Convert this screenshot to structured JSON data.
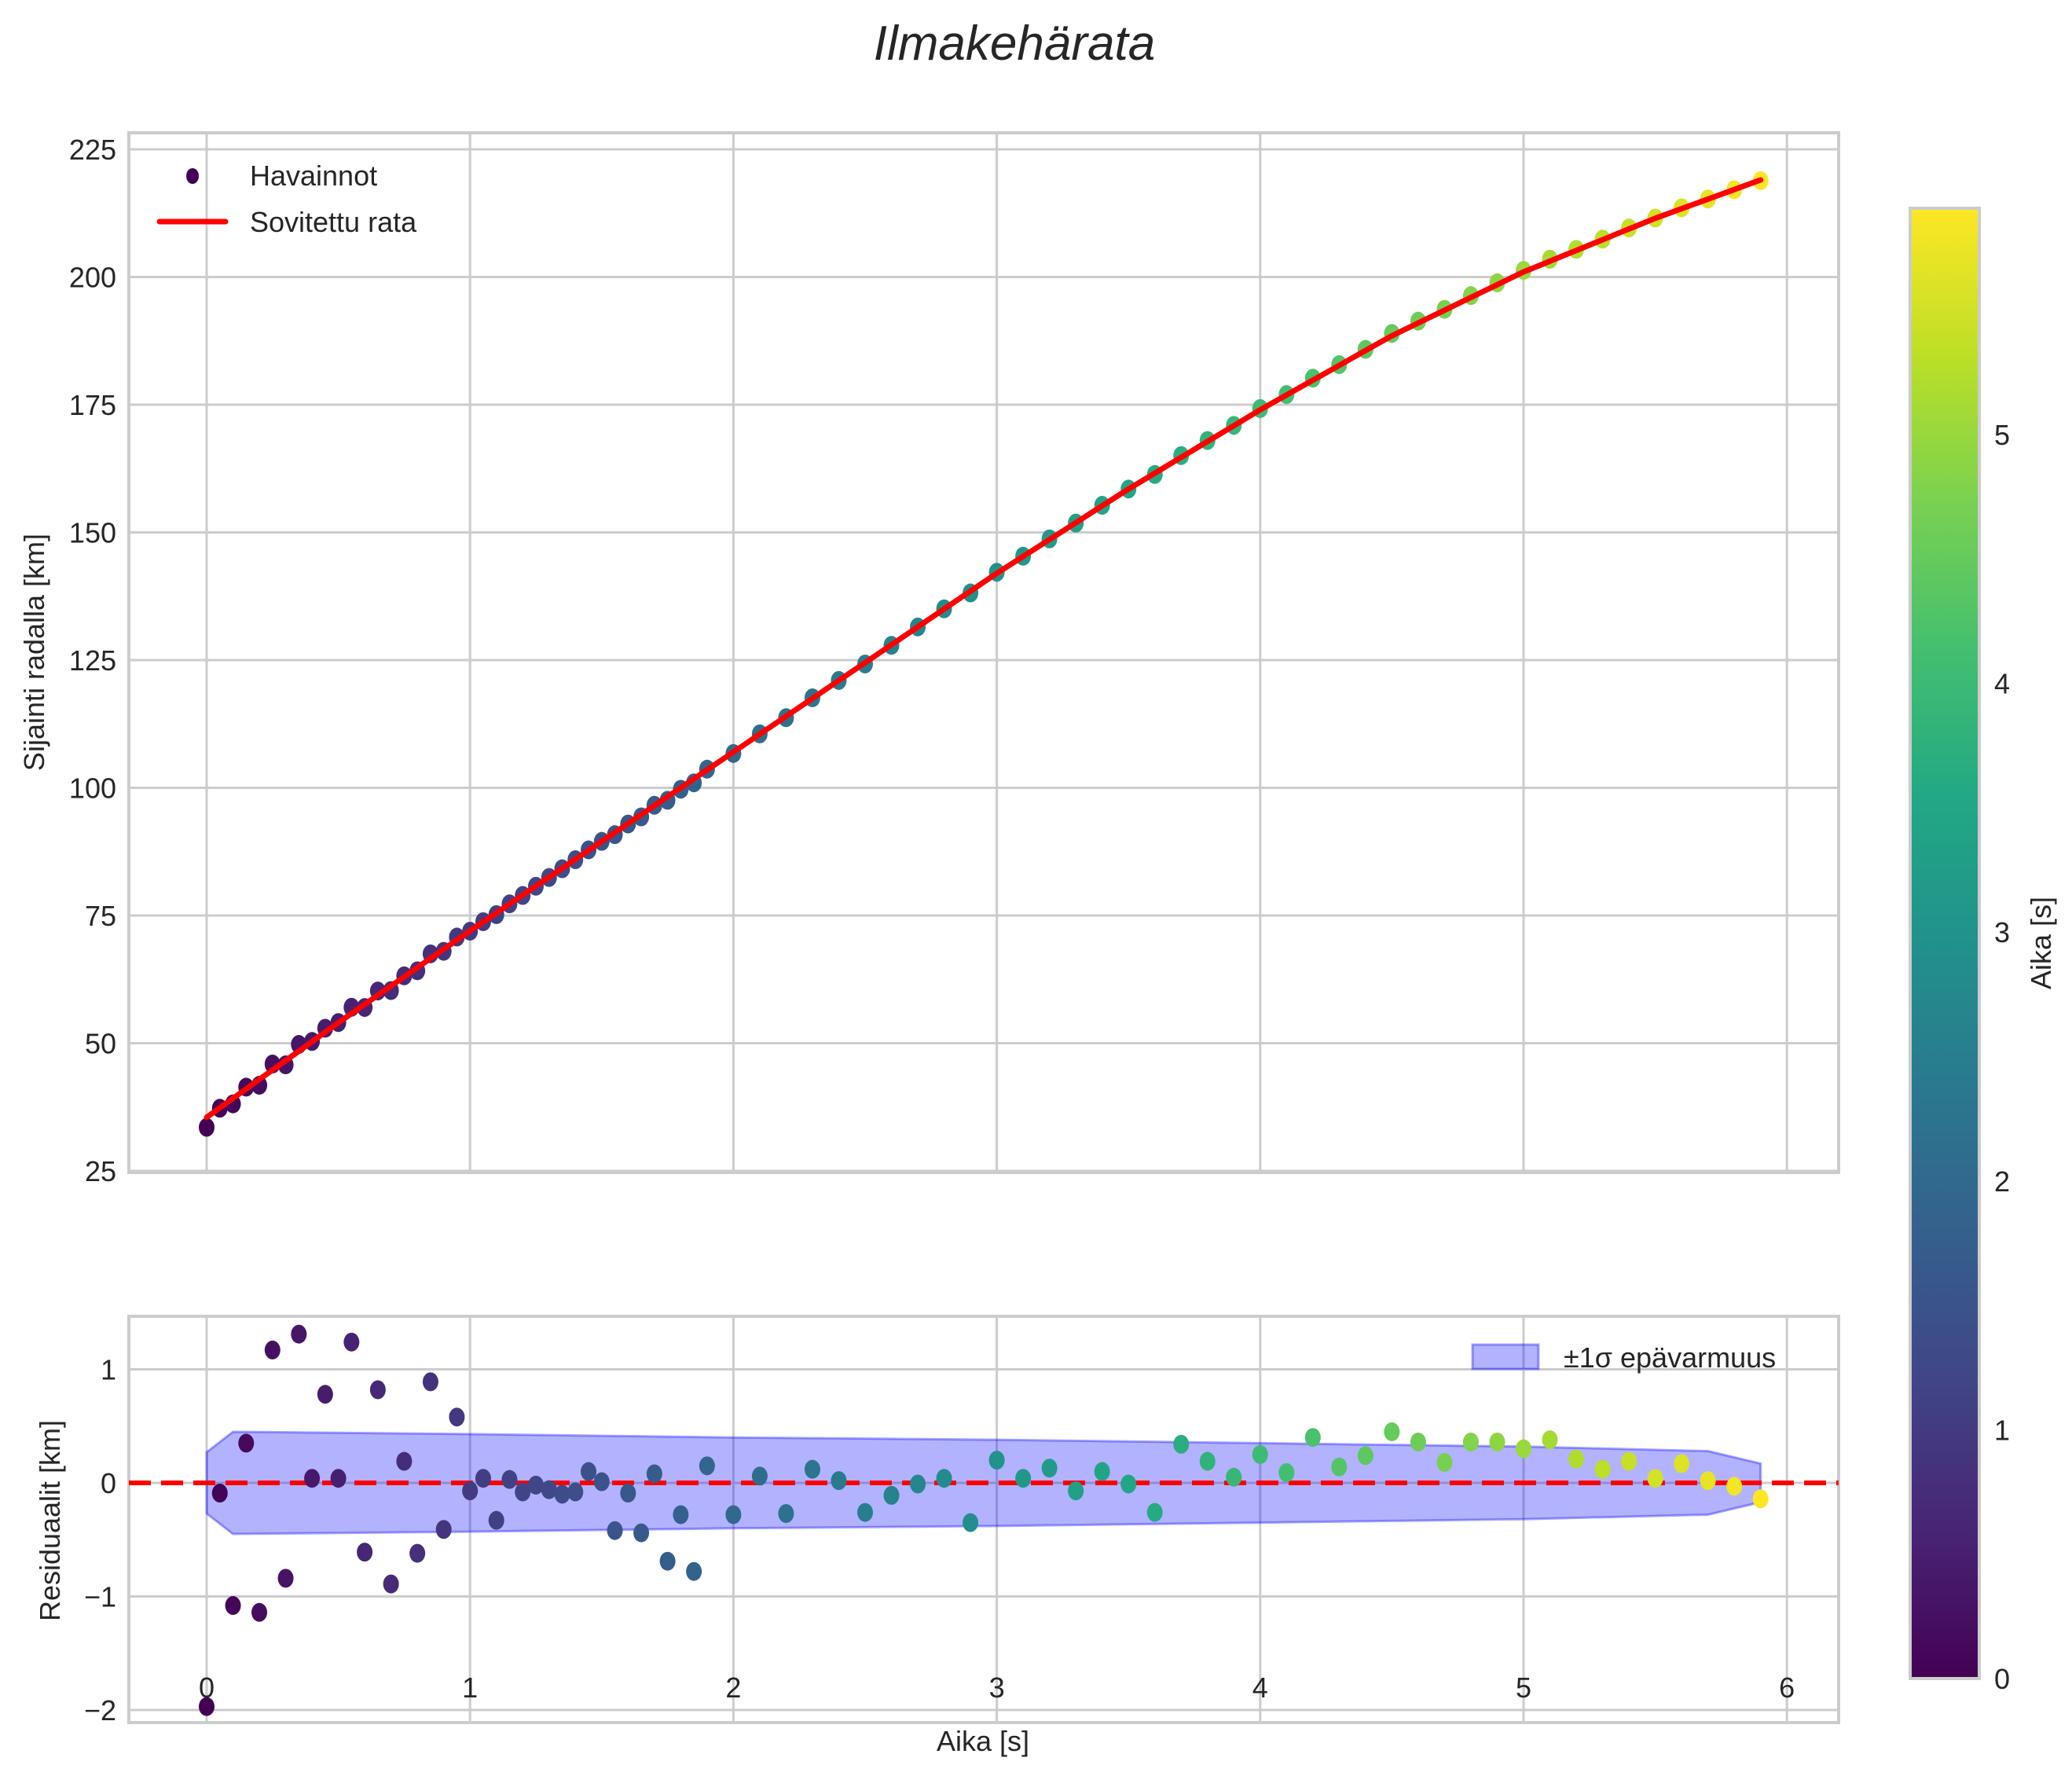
{
  "title": "Ilmakehärata",
  "colors": {
    "fit_line": "#ff0000",
    "zero_line": "#ff0000",
    "band_fill": "#0000ff",
    "band_alpha": 0.3,
    "grid": "#cccccc",
    "frame": "#cccccc",
    "text": "#262626",
    "colormap": "viridis"
  },
  "top_panel": {
    "ylabel": "Sijainti radalla [km]",
    "yticks": [
      "25",
      "50",
      "75",
      "100",
      "125",
      "150",
      "175",
      "200",
      "225"
    ],
    "legend": {
      "observations_label": "Havainnot",
      "fit_label": "Sovitettu rata"
    }
  },
  "bottom_panel": {
    "ylabel": "Residuaalit [km]",
    "xlabel": "Aika [s]",
    "yticks": [
      "−2",
      "−1",
      "0",
      "1"
    ],
    "xticks": [
      "0",
      "1",
      "2",
      "3",
      "4",
      "5",
      "6"
    ],
    "legend": {
      "band_label": "±1σ epävarmuus"
    }
  },
  "colorbar": {
    "label": "Aika [s]",
    "ticks": [
      "0",
      "1",
      "2",
      "3",
      "4",
      "5"
    ],
    "range": [
      0,
      5.9
    ]
  },
  "chart_data": [
    {
      "type": "scatter",
      "title": "Ilmakehärata",
      "xlabel": "",
      "ylabel": "Sijainti radalla [km]",
      "xlim": [
        -0.3,
        6.2
      ],
      "ylim": [
        25,
        228
      ],
      "grid": true,
      "legend_position": "upper left",
      "series": [
        {
          "name": "Sovitettu rata",
          "kind": "line",
          "x": [
            0,
            0.5,
            1.0,
            1.5,
            2.0,
            2.5,
            3.0,
            3.5,
            4.0,
            4.5,
            5.0,
            5.5,
            5.9
          ],
          "y": [
            35.5,
            54,
            72,
            89.5,
            107,
            124.5,
            142,
            158.5,
            174,
            188.5,
            201,
            211.5,
            219
          ]
        },
        {
          "name": "Havainnot",
          "kind": "scatter",
          "note": "y = Sovitettu rata + residual (colored by Aika [s], viridis)",
          "x_ref": "residuals.x"
        }
      ]
    },
    {
      "type": "scatter",
      "title": "",
      "xlabel": "Aika [s]",
      "ylabel": "Residuaalit [km]",
      "xlim": [
        -0.3,
        6.2
      ],
      "ylim": [
        -2.1,
        1.48
      ],
      "grid": true,
      "legend_position": "upper right",
      "residuals": {
        "x": [
          0,
          0.05,
          0.1,
          0.15,
          0.2,
          0.25,
          0.3,
          0.35,
          0.4,
          0.45,
          0.5,
          0.55,
          0.6,
          0.65,
          0.7,
          0.75,
          0.8,
          0.85,
          0.9,
          0.95,
          1.0,
          1.05,
          1.1,
          1.15,
          1.2,
          1.25,
          1.3,
          1.35,
          1.4,
          1.45,
          1.5,
          1.55,
          1.6,
          1.65,
          1.7,
          1.75,
          1.8,
          1.85,
          1.9,
          2.0,
          2.1,
          2.2,
          2.3,
          2.4,
          2.5,
          2.6,
          2.7,
          2.8,
          2.9,
          3.0,
          3.1,
          3.2,
          3.3,
          3.4,
          3.5,
          3.6,
          3.7,
          3.8,
          3.9,
          4.0,
          4.1,
          4.2,
          4.3,
          4.4,
          4.5,
          4.6,
          4.7,
          4.8,
          4.9,
          5.0,
          5.1,
          5.2,
          5.3,
          5.4,
          5.5,
          5.6,
          5.7,
          5.8,
          5.9
        ],
        "y": [
          -1.97,
          -0.09,
          -1.08,
          0.35,
          -1.14,
          1.17,
          -0.84,
          1.31,
          0.04,
          0.78,
          0.04,
          1.24,
          -0.61,
          0.82,
          -0.89,
          0.19,
          -0.62,
          0.89,
          -0.41,
          0.58,
          -0.07,
          0.04,
          -0.33,
          0.03,
          -0.08,
          -0.02,
          -0.06,
          -0.1,
          -0.08,
          0.1,
          0.01,
          -0.42,
          -0.09,
          -0.44,
          0.08,
          -0.69,
          -0.28,
          -0.78,
          0.15,
          -0.28,
          0.06,
          -0.27,
          0.12,
          0.02,
          -0.26,
          -0.11,
          -0.01,
          0.04,
          -0.35,
          0.2,
          0.04,
          0.13,
          -0.07,
          0.1,
          -0.01,
          -0.26,
          0.34,
          0.19,
          0.05,
          0.25,
          0.09,
          0.4,
          0.14,
          0.24,
          0.45,
          0.36,
          0.18,
          0.36,
          0.36,
          0.3,
          0.38,
          0.21,
          0.12,
          0.19,
          0.04,
          0.17,
          0.02,
          -0.03,
          -0.14
        ]
      },
      "zero_line": {
        "y": 0,
        "style": "dashed"
      },
      "uncertainty_band": {
        "name": "±1σ epävarmuus",
        "x": [
          0,
          0.1,
          1.0,
          2.0,
          3.0,
          4.0,
          5.0,
          5.7,
          5.9
        ],
        "upper": [
          0.27,
          0.45,
          0.43,
          0.4,
          0.38,
          0.35,
          0.32,
          0.28,
          0.17
        ],
        "lower": [
          -0.27,
          -0.45,
          -0.43,
          -0.4,
          -0.38,
          -0.35,
          -0.32,
          -0.28,
          -0.17
        ]
      }
    }
  ]
}
